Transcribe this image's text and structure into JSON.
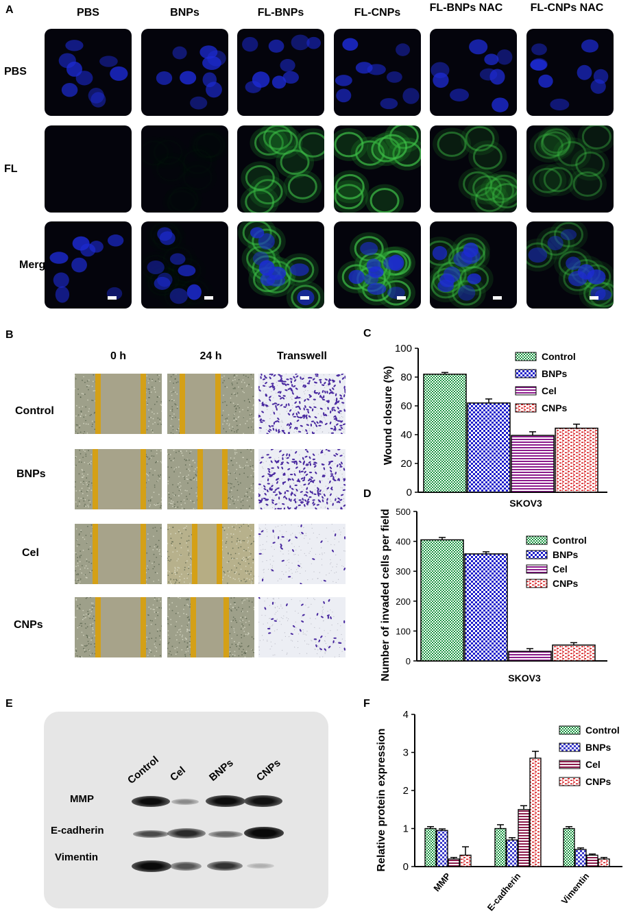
{
  "panels": {
    "a": {
      "letter": "A",
      "columns": [
        "PBS",
        "BNPs",
        "FL-BNPs",
        "FL-CNPs",
        "FL-BNPs NAC",
        "FL-CNPs NAC"
      ],
      "rows": [
        "PBS",
        "FL",
        "Merge"
      ]
    },
    "b": {
      "letter": "B",
      "columns": [
        "0 h",
        "24 h",
        "Transwell"
      ],
      "rows": [
        "Control",
        "BNPs",
        "Cel",
        "CNPs"
      ],
      "scratch_color": "#d4a017"
    },
    "c": {
      "letter": "C"
    },
    "d": {
      "letter": "D"
    },
    "e": {
      "letter": "E",
      "lanes": [
        "Control",
        "Cel",
        "BNPs",
        "CNPs"
      ],
      "proteins": [
        "MMP",
        "E-cadherin",
        "Vimentin"
      ]
    },
    "f": {
      "letter": "F"
    }
  },
  "chart_data": [
    {
      "type": "bar",
      "panel": "C",
      "categories": [
        "Control",
        "BNPs",
        "Cel",
        "CNPs"
      ],
      "values": [
        82,
        62,
        39.5,
        44.5
      ],
      "errors": [
        1.2,
        2.8,
        2.5,
        2.8
      ],
      "ylabel": "Wound closure (%)",
      "xlabel": "SKOV3",
      "ylim": [
        0,
        100
      ],
      "yticks": [
        0,
        20,
        40,
        60,
        80,
        100
      ],
      "legend": [
        "Control",
        "BNPs",
        "Cel",
        "CNPs"
      ],
      "legend_position": "top-right",
      "colors": [
        "#1a9641",
        "#1c1cc9",
        "#8b1a8b",
        "#d7191c"
      ]
    },
    {
      "type": "bar",
      "panel": "D",
      "categories": [
        "Control",
        "BNPs",
        "Cel",
        "CNPs"
      ],
      "values": [
        405,
        358,
        32,
        53
      ],
      "errors": [
        8,
        7,
        9,
        8
      ],
      "ylabel": "Number of invaded cells per field",
      "xlabel": "SKOV3",
      "ylim": [
        0,
        500
      ],
      "yticks": [
        0,
        100,
        200,
        300,
        400,
        500
      ],
      "legend": [
        "Control",
        "BNPs",
        "Cel",
        "CNPs"
      ],
      "legend_position": "top-right",
      "colors": [
        "#1a9641",
        "#1c1cc9",
        "#8b1a8b",
        "#d7191c"
      ]
    },
    {
      "type": "bar",
      "panel": "F",
      "categories": [
        "MMP",
        "E-cadherin",
        "Vimentin"
      ],
      "series": [
        {
          "name": "Control",
          "values": [
            1.0,
            1.0,
            1.0
          ],
          "errors": [
            0.05,
            0.1,
            0.05
          ]
        },
        {
          "name": "BNPs",
          "values": [
            0.95,
            0.7,
            0.45
          ],
          "errors": [
            0.04,
            0.06,
            0.04
          ]
        },
        {
          "name": "Cel",
          "values": [
            0.2,
            1.5,
            0.3
          ],
          "errors": [
            0.04,
            0.1,
            0.03
          ]
        },
        {
          "name": "CNPs",
          "values": [
            0.3,
            2.85,
            0.2
          ],
          "errors": [
            0.22,
            0.18,
            0.04
          ]
        }
      ],
      "ylabel": "Relative protein  expression",
      "ylim": [
        0,
        4
      ],
      "yticks": [
        0,
        1,
        2,
        3,
        4
      ],
      "legend_position": "top-right",
      "colors": [
        "#1a9641",
        "#3a3ac9",
        "#8b1a4a",
        "#d7191c"
      ]
    }
  ]
}
